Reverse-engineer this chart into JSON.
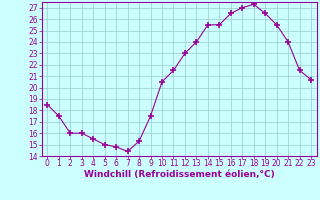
{
  "x": [
    0,
    1,
    2,
    3,
    4,
    5,
    6,
    7,
    8,
    9,
    10,
    11,
    12,
    13,
    14,
    15,
    16,
    17,
    18,
    19,
    20,
    21,
    22,
    23
  ],
  "y": [
    18.5,
    17.5,
    16.0,
    16.0,
    15.5,
    15.0,
    14.8,
    14.4,
    15.3,
    17.5,
    20.5,
    21.5,
    23.0,
    24.0,
    25.5,
    25.5,
    26.5,
    27.0,
    27.3,
    26.5,
    25.5,
    24.0,
    21.5,
    20.7
  ],
  "ylim": [
    14,
    27.5
  ],
  "yticks": [
    14,
    15,
    16,
    17,
    18,
    19,
    20,
    21,
    22,
    23,
    24,
    25,
    26,
    27
  ],
  "xticks": [
    0,
    1,
    2,
    3,
    4,
    5,
    6,
    7,
    8,
    9,
    10,
    11,
    12,
    13,
    14,
    15,
    16,
    17,
    18,
    19,
    20,
    21,
    22,
    23
  ],
  "line_color": "#990099",
  "marker": "+",
  "bg_color": "#ccffff",
  "grid_color": "#99cccc",
  "xlabel": "Windchill (Refroidissement éolien,°C)",
  "tick_fontsize": 5.5,
  "label_fontsize": 6.5
}
